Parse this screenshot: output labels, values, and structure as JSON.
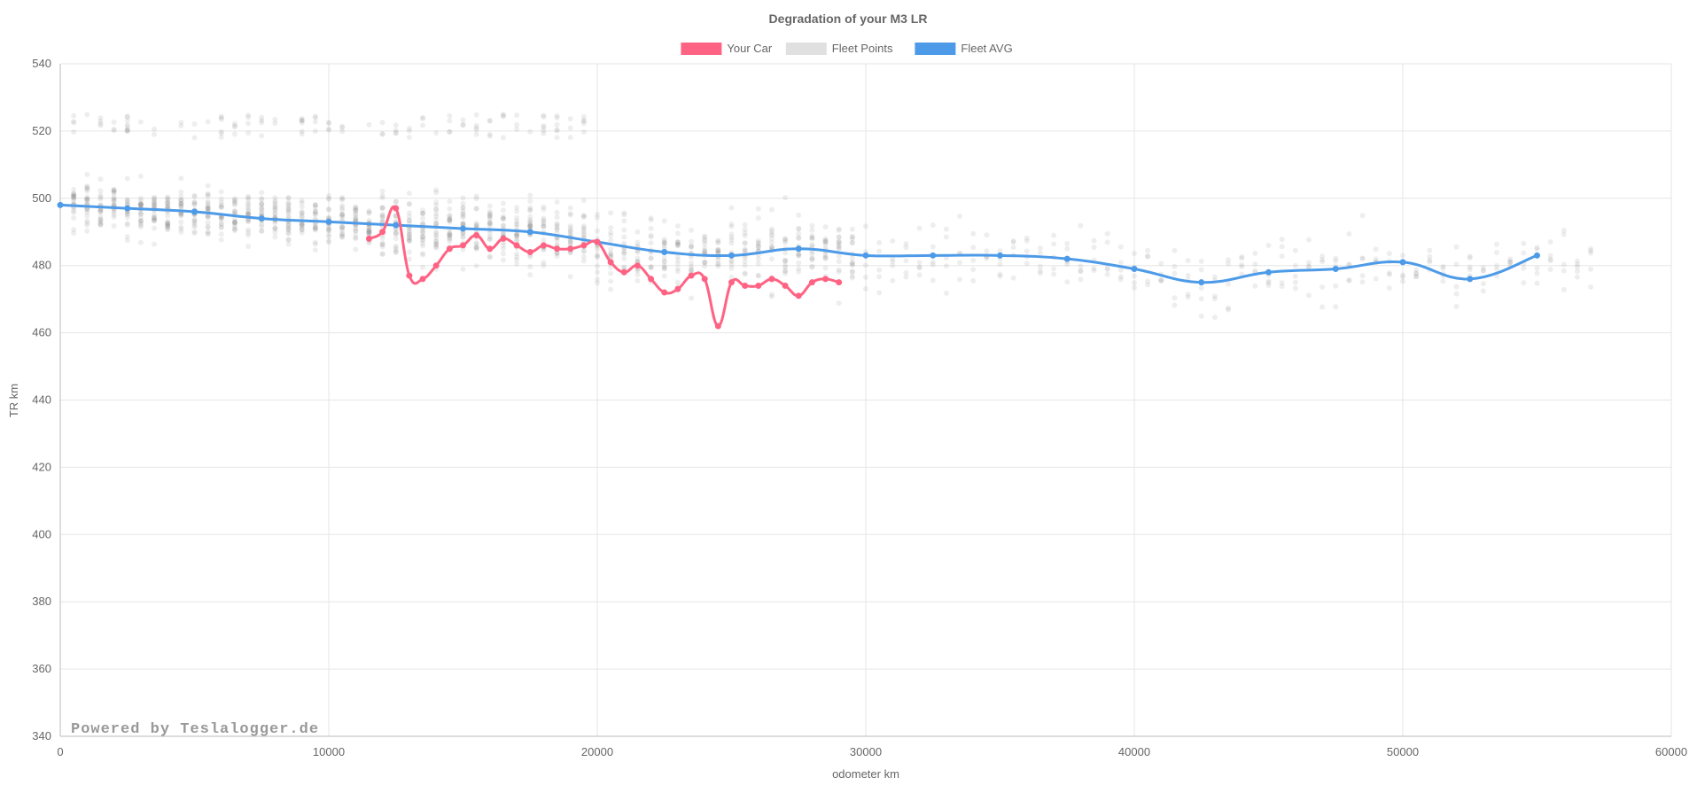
{
  "chart_data": {
    "type": "line",
    "title": "Degradation of your M3 LR",
    "xlabel": "odometer km",
    "ylabel": "TR km",
    "xlim": [
      0,
      60000
    ],
    "ylim": [
      340,
      540
    ],
    "xticks": [
      0,
      10000,
      20000,
      30000,
      40000,
      50000,
      60000
    ],
    "yticks": [
      340,
      360,
      380,
      400,
      420,
      440,
      460,
      480,
      500,
      520,
      540
    ],
    "grid": true,
    "legend_position": "top",
    "watermark": "Powered by Teslalogger.de",
    "series": [
      {
        "name": "Your Car",
        "kind": "line",
        "color": "#ff6384",
        "points": [
          [
            11500,
            488
          ],
          [
            12000,
            490
          ],
          [
            12500,
            497
          ],
          [
            13000,
            477
          ],
          [
            13500,
            476
          ],
          [
            14000,
            480
          ],
          [
            14500,
            485
          ],
          [
            15000,
            486
          ],
          [
            15500,
            489
          ],
          [
            16000,
            485
          ],
          [
            16500,
            488
          ],
          [
            17000,
            486
          ],
          [
            17500,
            484
          ],
          [
            18000,
            486
          ],
          [
            18500,
            485
          ],
          [
            19000,
            485
          ],
          [
            19500,
            486
          ],
          [
            20000,
            487
          ],
          [
            20500,
            481
          ],
          [
            21000,
            478
          ],
          [
            21500,
            480
          ],
          [
            22000,
            476
          ],
          [
            22500,
            472
          ],
          [
            23000,
            473
          ],
          [
            23500,
            477
          ],
          [
            24000,
            476
          ],
          [
            24500,
            462
          ],
          [
            25000,
            475
          ],
          [
            25500,
            474
          ],
          [
            26000,
            474
          ],
          [
            26500,
            476
          ],
          [
            27000,
            474
          ],
          [
            27500,
            471
          ],
          [
            28000,
            475
          ],
          [
            28500,
            476
          ],
          [
            29000,
            475
          ]
        ]
      },
      {
        "name": "Fleet Points",
        "kind": "scatter",
        "color": "#e0e0e0",
        "points": []
      },
      {
        "name": "Fleet AVG",
        "kind": "line",
        "color": "#4d9be8",
        "points": [
          [
            0,
            498
          ],
          [
            2500,
            497
          ],
          [
            5000,
            496
          ],
          [
            7500,
            494
          ],
          [
            10000,
            493
          ],
          [
            12500,
            492
          ],
          [
            15000,
            491
          ],
          [
            17500,
            490
          ],
          [
            20000,
            487
          ],
          [
            22500,
            484
          ],
          [
            25000,
            483
          ],
          [
            27500,
            485
          ],
          [
            30000,
            483
          ],
          [
            32500,
            483
          ],
          [
            35000,
            483
          ],
          [
            37500,
            482
          ],
          [
            40000,
            479
          ],
          [
            42500,
            475
          ],
          [
            45000,
            478
          ],
          [
            47500,
            479
          ],
          [
            50000,
            481
          ],
          [
            52500,
            476
          ],
          [
            55000,
            483
          ]
        ]
      }
    ]
  }
}
